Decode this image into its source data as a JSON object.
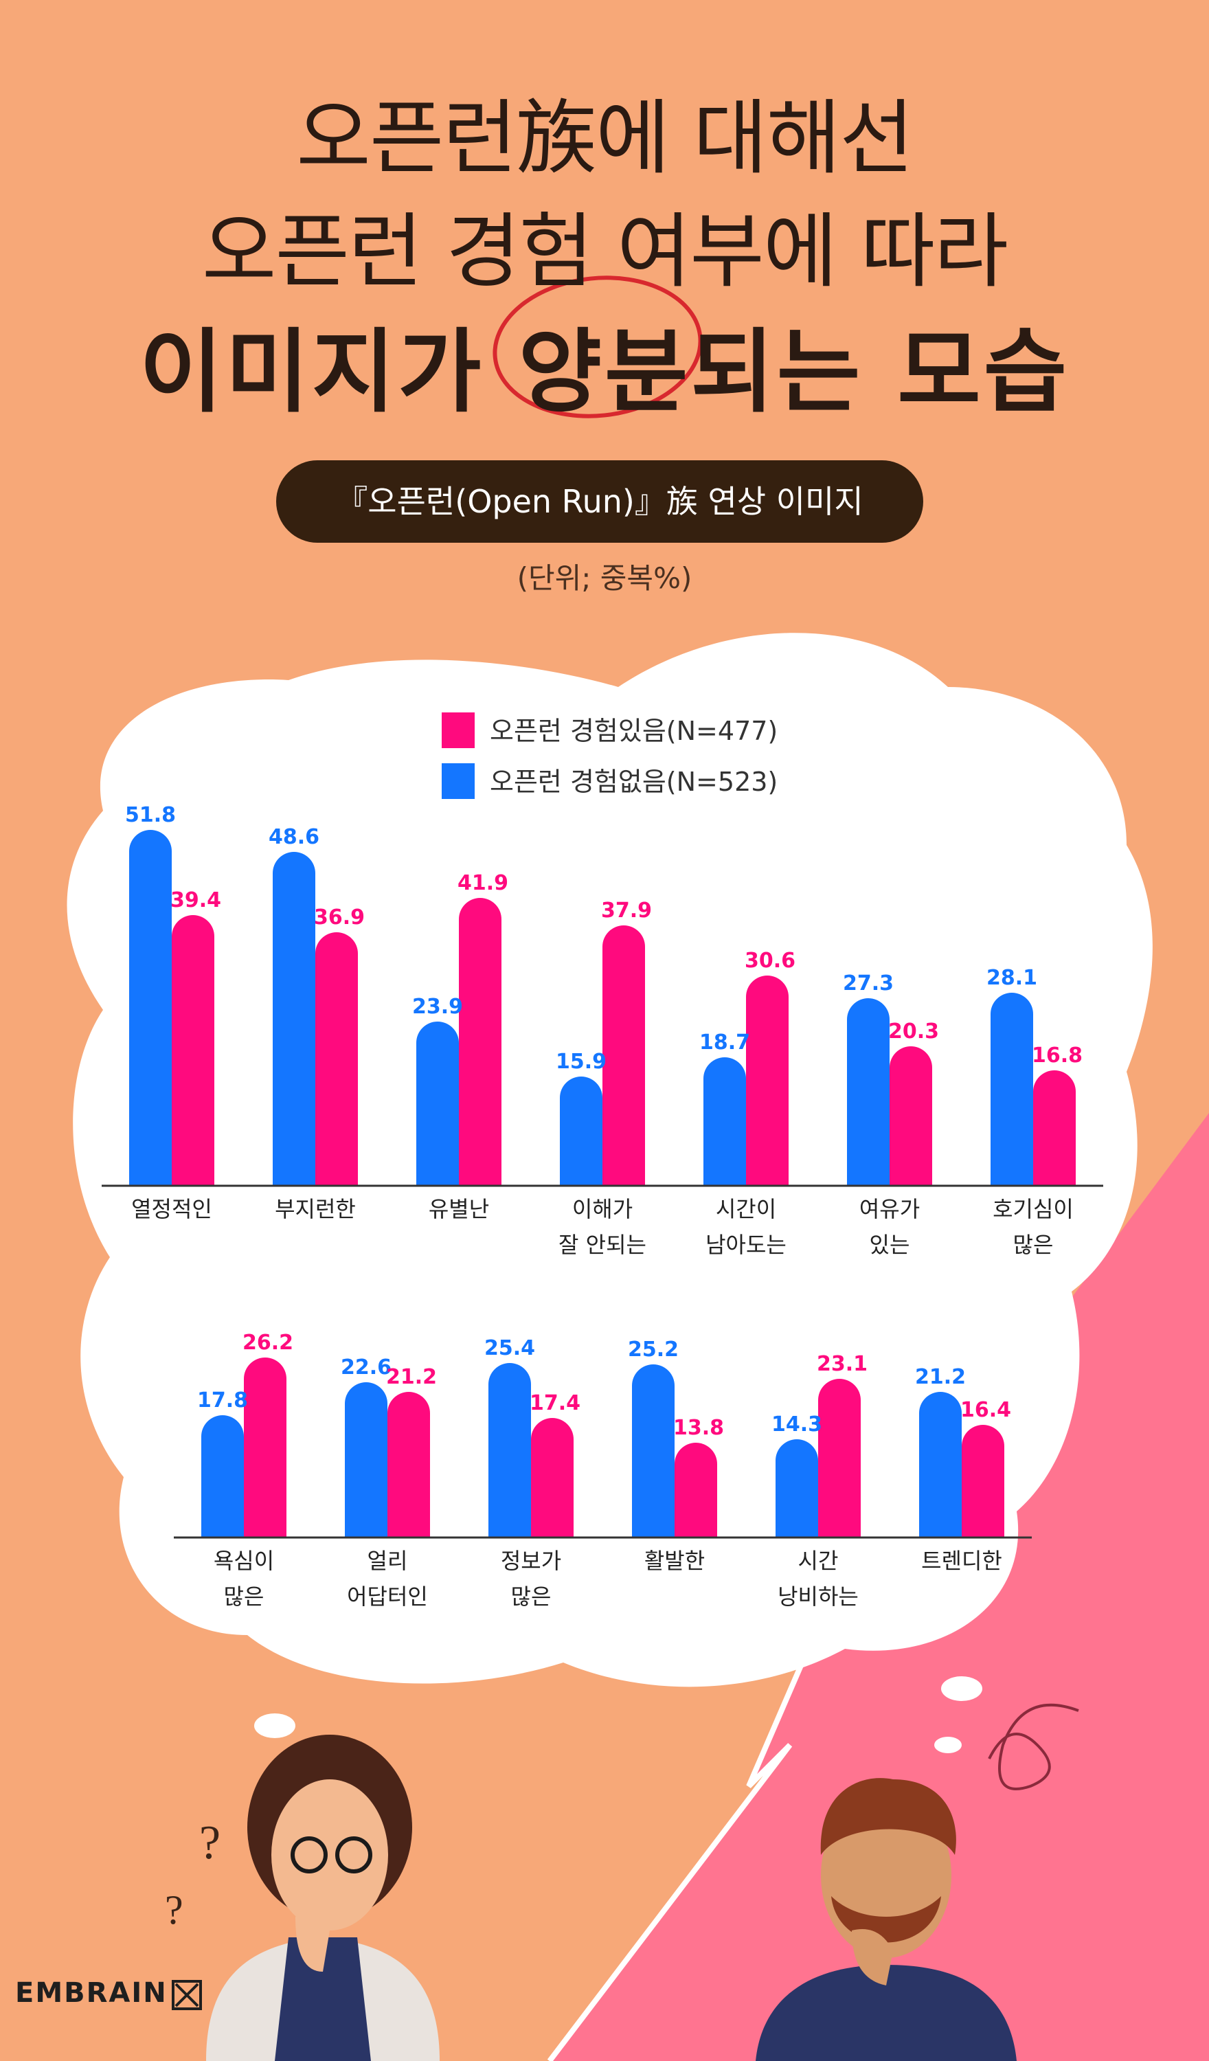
{
  "header": {
    "title_line1": "오픈런族에 대해선",
    "title_line2": "오픈런 경험 여부에 따라",
    "title_line3": "이미지가 양분되는 모습",
    "subtitle": "『오픈런(Open Run)』族 연상 이미지",
    "unit": "(단위; 중복%)"
  },
  "brand": {
    "name": "EMBRAIN"
  },
  "colors": {
    "background": "#F7A878",
    "pink": "#FF0A7E",
    "blue": "#1476FF",
    "pink_panel": "#FF7490",
    "ink": "#2A1A12"
  },
  "chart_data": {
    "type": "bar",
    "categories": [
      "열정적인",
      "부지런한",
      "유별난",
      "이해가\n잘 안되는",
      "시간이\n남아도는",
      "여유가\n있는",
      "호기심이\n많은",
      "욕심이\n많은",
      "얼리\n어답터인",
      "정보가\n많은",
      "활발한",
      "시간\n낭비하는",
      "트렌디한"
    ],
    "series": [
      {
        "name": "오픈런 경험있음(N=477)",
        "color": "#FF0A7E",
        "values": [
          39.4,
          36.9,
          41.9,
          37.9,
          30.6,
          20.3,
          16.8,
          26.2,
          21.2,
          17.4,
          13.8,
          23.1,
          16.4
        ]
      },
      {
        "name": "오픈런 경험없음(N=523)",
        "color": "#1476FF",
        "values": [
          51.8,
          48.6,
          23.9,
          15.9,
          18.7,
          27.3,
          28.1,
          17.8,
          22.6,
          25.4,
          25.2,
          14.3,
          21.2
        ]
      }
    ],
    "rows": [
      {
        "categories": [
          0,
          1,
          2,
          3,
          4,
          5,
          6
        ]
      },
      {
        "categories": [
          7,
          8,
          9,
          10,
          11,
          12
        ]
      }
    ],
    "legend_position": "top-center",
    "grid": false
  }
}
